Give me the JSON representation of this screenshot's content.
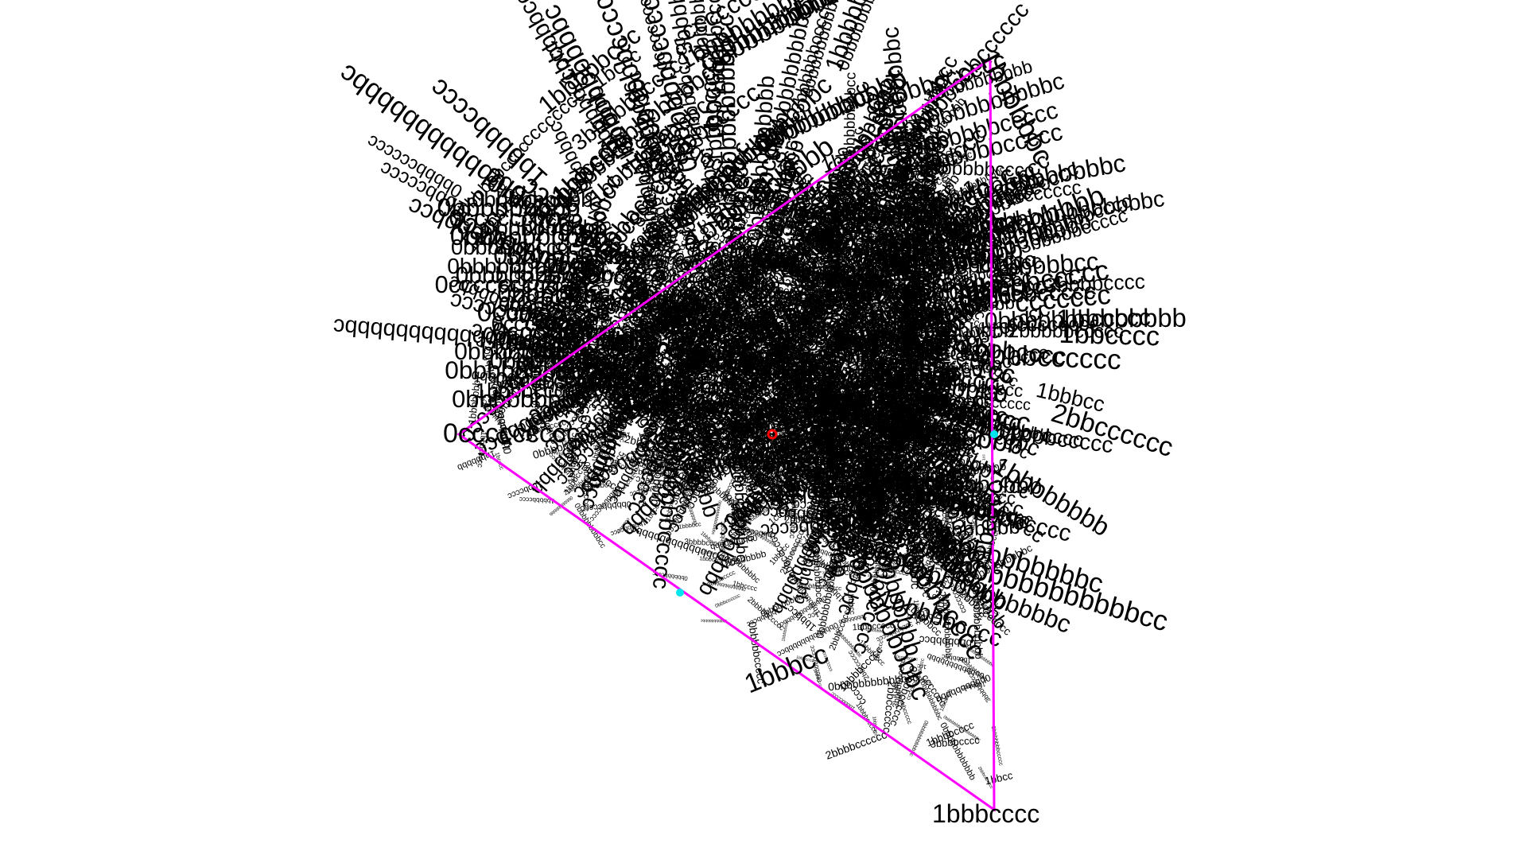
{
  "colors": {
    "background": "#ffffff",
    "label_ink": "#000000",
    "triangle": "#ff00ff",
    "center_marker": "#ff0000",
    "edge_markers": "#00e5ee"
  },
  "triangle": {
    "vertices": [
      {
        "id": "top",
        "label": "1bbbbbbc"
      },
      {
        "id": "left",
        "label": "0ccccccccc"
      },
      {
        "id": "bottom",
        "label": "1bbbcccc"
      }
    ]
  },
  "center_marker": {
    "shape": "circle-icon"
  },
  "edge_markers": [
    {
      "edge": "right",
      "shape": "dot-icon"
    },
    {
      "edge": "lower-left",
      "shape": "dot-icon"
    }
  ],
  "edge_labels": {
    "right": [
      "1cc",
      "1bcccc",
      "2bbbccccccc"
    ],
    "lower_left": [
      "1bbbcc",
      "2bbbbcccccc",
      "3bbbbcccc"
    ]
  },
  "dense_cluster": {
    "description_words": [],
    "label_samples": [
      "1bbbbbbc",
      "0bbbbbbbbbbbc",
      "1bbbccccc",
      "0bbbbbbcccc",
      "1bbbbbbbb",
      "0ccccccccc",
      "1bbbcccc",
      "1bbbbcccc",
      "ccccccccc",
      "0bbbbbbbbb",
      "1bbbccc",
      "0bbbbbbbbbb",
      "0bbbbbbbbbbbb",
      "1bbbbbbb",
      "cccccccc",
      "0bbbbbbbbbbb",
      "1bbbbbccc",
      "0bbbbbbbbbbbbbbbbc",
      "1bbcccc",
      "cccc",
      "1bbbbbbbbbb",
      "0bbbbbbbccccc",
      "1bbbbcc",
      "ccccccc",
      "0bbbcccccc",
      "1bcccc",
      "1cc",
      "1bbbcc",
      "2bbbccccccc",
      "3bbbbbbbbcccccc",
      "2bbbbcccccc",
      "3bbbbcccc",
      "2bbcccccc",
      "3bbbbbccccc",
      "1bbbbbbbbccc",
      "0bbbbbbbbbbbbcc",
      "1bbbbccccc",
      "0bbbbbccccc",
      "1bbbbbbbcc",
      "1bbbbbcccc",
      "0bbbbcccccc",
      "1bbcc",
      "1bccc",
      "0bbbbbbbbbbbbbc",
      "1bbbbbbbbbbc",
      "1bbbbbcc",
      "0bbbbbbbbbcc",
      "2bbbbbccccc",
      "3bbbbbbcccc",
      "2bbbbbbbcccccc"
    ]
  }
}
